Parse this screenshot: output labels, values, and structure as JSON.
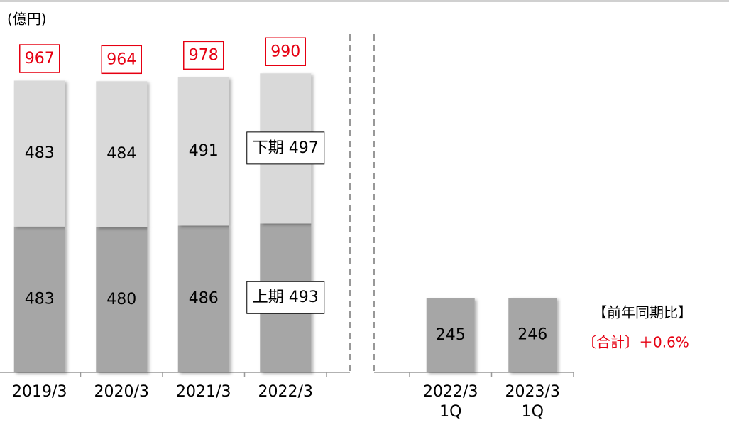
{
  "unit": "(億円)",
  "chart_data": [
    {
      "type": "bar",
      "stacked": true,
      "categories": [
        "2019/3",
        "2020/3",
        "2021/3",
        "2022/3"
      ],
      "series": [
        {
          "color": "#a6a6a6",
          "values": [
            483,
            480,
            486,
            493
          ],
          "value_labels": [
            "483",
            "480",
            "486",
            "上期 493"
          ]
        },
        {
          "color": "#d9d9d9",
          "values": [
            483,
            484,
            491,
            497
          ],
          "value_labels": [
            "483",
            "484",
            "491",
            "下期 497"
          ]
        }
      ],
      "totals": [
        967,
        964,
        978,
        990
      ],
      "total_color": "#e60012",
      "ylim": [
        0,
        1000
      ]
    },
    {
      "type": "bar",
      "categories": [
        [
          "2022/3",
          "1Q"
        ],
        [
          "2023/3",
          "1Q"
        ]
      ],
      "series": [
        {
          "color": "#a6a6a6",
          "values": [
            245,
            246
          ]
        }
      ],
      "ylim": [
        0,
        1000
      ],
      "annotations": [
        {
          "text": "【前年同期比】",
          "color": "#000000"
        },
        {
          "text": "〔合計〕＋0.6%",
          "color": "#e60012"
        }
      ]
    }
  ]
}
